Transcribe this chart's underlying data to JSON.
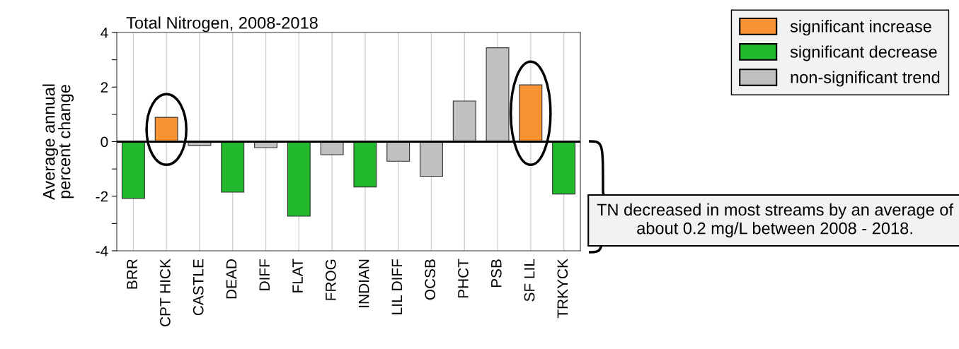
{
  "chart_data": {
    "type": "bar",
    "title": "Total Nitrogen, 2008-2018",
    "ylabel": "Average annual\npercent change",
    "categories": [
      "BRR",
      "CPT HICK",
      "CASTLE",
      "DEAD",
      "DIFF",
      "FLAT",
      "FROG",
      "INDIAN",
      "LIL DIFF",
      "OCSB",
      "PHCT",
      "PSB",
      "SF LIL",
      "TRKYCK"
    ],
    "stacked": true,
    "series": [
      {
        "name": "significant increase",
        "color": "#f79332",
        "values": [
          null,
          0.89,
          null,
          null,
          null,
          null,
          null,
          null,
          null,
          null,
          null,
          null,
          2.08,
          null
        ]
      },
      {
        "name": "significant decrease",
        "color": "#22b82e",
        "values": [
          -2.08,
          null,
          null,
          -1.85,
          null,
          -2.73,
          null,
          -1.66,
          null,
          null,
          null,
          null,
          null,
          -1.92
        ]
      },
      {
        "name": "non-significant trend",
        "color": "#c0c0c0",
        "values": [
          null,
          null,
          -0.14,
          null,
          -0.22,
          null,
          -0.48,
          null,
          -0.72,
          -1.27,
          1.49,
          3.44,
          null,
          null
        ]
      }
    ],
    "ylim": [
      -4,
      4
    ],
    "yticks": [
      -4,
      {
        "value": -3,
        "label": null
      },
      -2,
      {
        "value": -1,
        "label": null
      },
      0,
      {
        "value": 1,
        "label": null
      },
      2,
      {
        "value": 3,
        "label": null
      },
      4
    ],
    "grid": "x",
    "legend": "top right",
    "annotations": [
      "TN decreased in most streams by an average of about 0.2 mg/L between 2008 - 2018."
    ]
  }
}
